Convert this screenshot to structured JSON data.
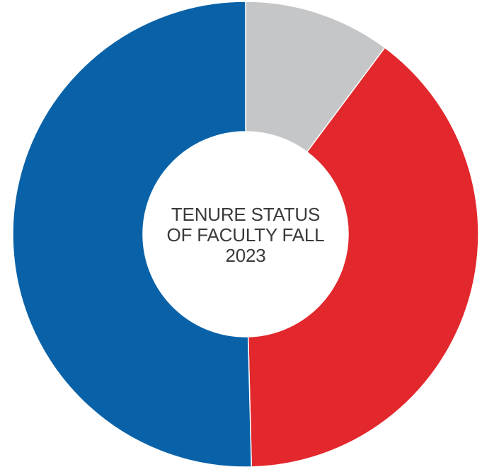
{
  "chart_data": {
    "type": "pie",
    "style": "donut",
    "center_label_lines": [
      "TENURE STATUS",
      "OF FACULTY FALL",
      "2023"
    ],
    "slices": [
      {
        "value": 10.2,
        "color": "#c5c6c8"
      },
      {
        "value": 39.4,
        "color": "#e2282c"
      },
      {
        "value": 50.4,
        "color": "#0962a8"
      }
    ],
    "start_angle_deg": 0,
    "direction": "clockwise"
  }
}
